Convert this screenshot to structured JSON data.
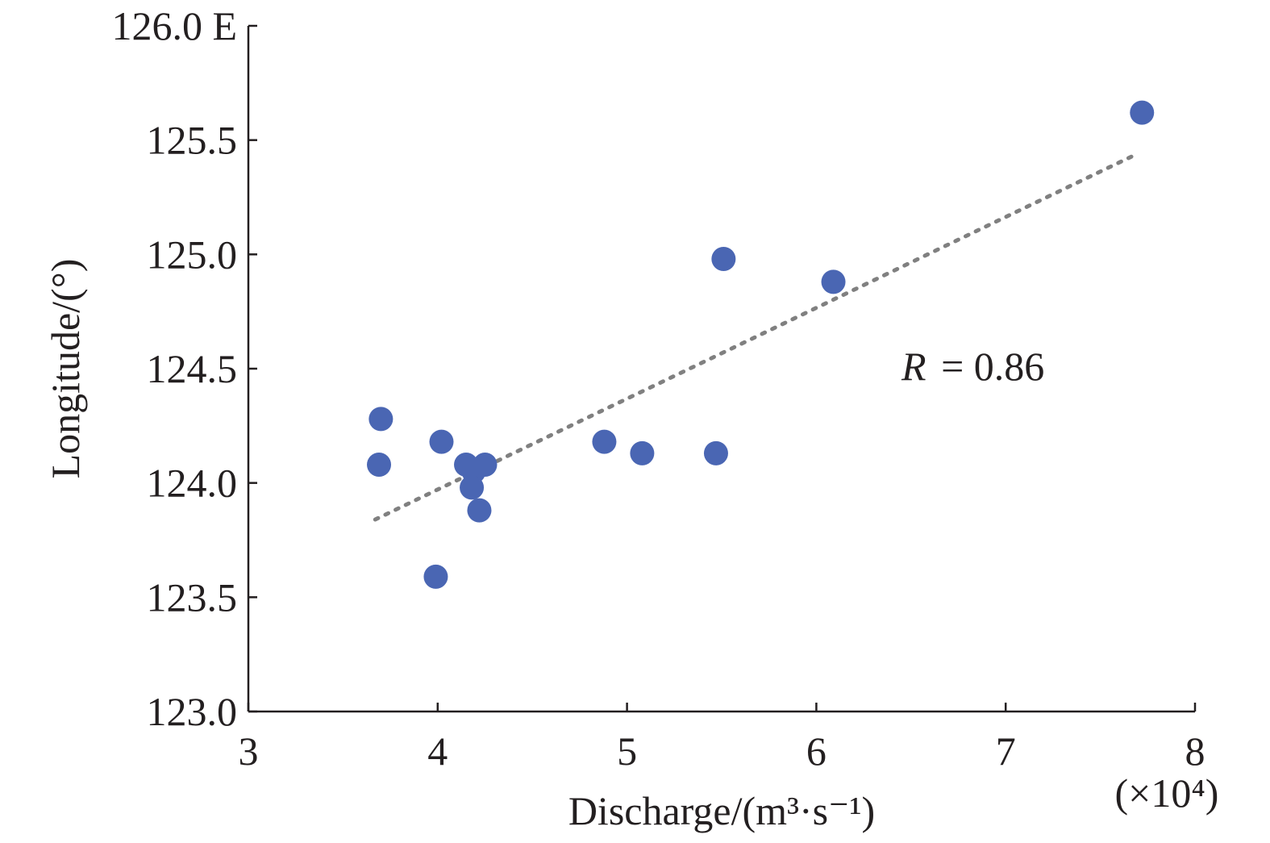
{
  "chart_data": {
    "type": "scatter",
    "xlabel": "Discharge/(m³·s⁻¹)",
    "ylabel": "Longitude/(°)",
    "x_multiplier_label": "(×10⁴)",
    "xlim": [
      3,
      8
    ],
    "ylim": [
      123.0,
      126.0
    ],
    "x_ticks": [
      3,
      4,
      5,
      6,
      7,
      8
    ],
    "x_tick_labels": [
      "3",
      "4",
      "5",
      "6",
      "7",
      "8"
    ],
    "y_ticks": [
      123.0,
      123.5,
      124.0,
      124.5,
      125.0,
      125.5,
      126.0
    ],
    "y_tick_labels": [
      "123.0",
      "123.5",
      "124.0",
      "124.5",
      "125.0",
      "125.5",
      "126.0 E"
    ],
    "grid": false,
    "point_color": "#4a66b3",
    "trend_color": "#808080",
    "points": [
      {
        "x": 3.7,
        "y": 124.28
      },
      {
        "x": 3.69,
        "y": 124.08
      },
      {
        "x": 4.02,
        "y": 124.18
      },
      {
        "x": 3.99,
        "y": 123.59
      },
      {
        "x": 4.15,
        "y": 124.08
      },
      {
        "x": 4.19,
        "y": 124.05
      },
      {
        "x": 4.25,
        "y": 124.08
      },
      {
        "x": 4.18,
        "y": 123.98
      },
      {
        "x": 4.22,
        "y": 123.88
      },
      {
        "x": 4.88,
        "y": 124.18
      },
      {
        "x": 5.08,
        "y": 124.13
      },
      {
        "x": 5.47,
        "y": 124.13
      },
      {
        "x": 5.51,
        "y": 124.98
      },
      {
        "x": 6.09,
        "y": 124.88
      },
      {
        "x": 7.72,
        "y": 125.62
      }
    ],
    "trendline": {
      "x": [
        3.67,
        7.67
      ],
      "y": [
        123.84,
        125.43
      ]
    },
    "annotation": {
      "label": "R",
      "text": "= 0.86",
      "x": 6.45,
      "y": 124.45
    }
  }
}
